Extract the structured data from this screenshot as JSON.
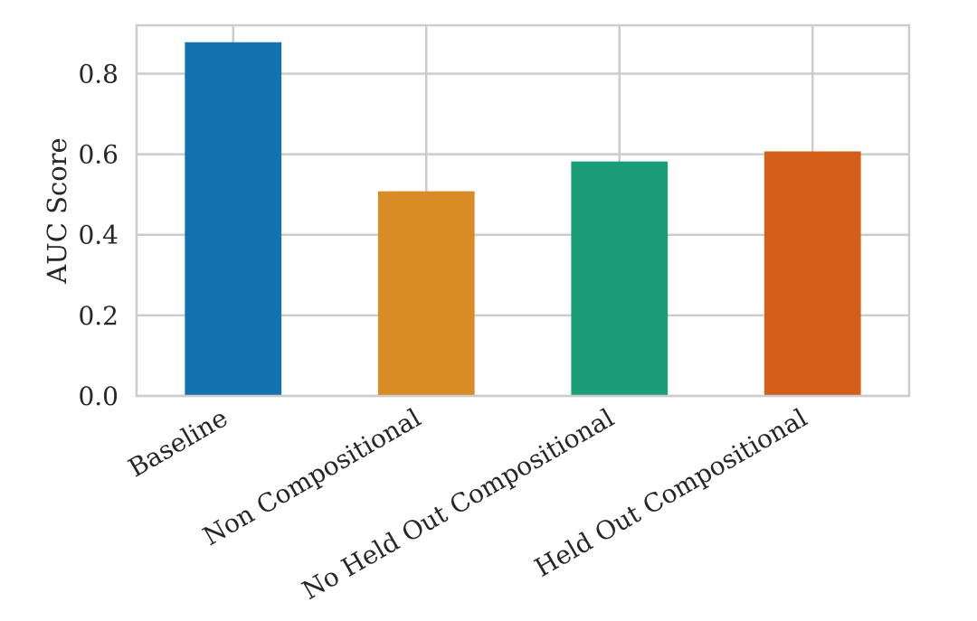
{
  "chart_data": {
    "type": "bar",
    "title": "",
    "xlabel": "",
    "ylabel": "AUC Score",
    "categories": [
      "Baseline",
      "Non Compositional",
      "No Held Out Compositional",
      "Held Out Compositional"
    ],
    "values": [
      0.878,
      0.508,
      0.582,
      0.607
    ],
    "colors": [
      "#1272b1",
      "#d98b26",
      "#1b9e77",
      "#d35f1b"
    ],
    "ylim": [
      0,
      0.92
    ],
    "yticks": [
      0.0,
      0.2,
      0.4,
      0.6,
      0.8
    ],
    "ytick_labels": [
      "0.0",
      "0.2",
      "0.4",
      "0.6",
      "0.8"
    ],
    "grid": true,
    "legend": "none"
  }
}
